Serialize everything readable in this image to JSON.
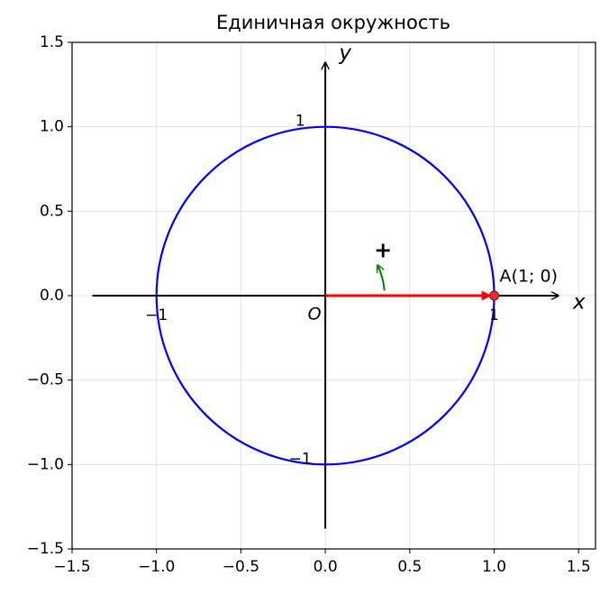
{
  "chart_data": {
    "type": "unit-circle",
    "title": "Единичная окружность",
    "xlim": [
      -1.5,
      1.6
    ],
    "ylim": [
      -1.5,
      1.5
    ],
    "xticks": [
      {
        "value": -1.5,
        "label": "−1.5"
      },
      {
        "value": -1.0,
        "label": "−1.0"
      },
      {
        "value": -0.5,
        "label": "−0.5"
      },
      {
        "value": 0.0,
        "label": "0.0"
      },
      0.5,
      {
        "value": 1.0,
        "label": "1.0"
      },
      1.5
    ],
    "yticks": [
      {
        "value": -1.5,
        "label": "−1.5"
      },
      {
        "value": -1.0,
        "label": "−1.0"
      },
      {
        "value": -0.5,
        "label": "−0.5"
      },
      {
        "value": 0.0,
        "label": "0.0"
      },
      0.5,
      {
        "value": 1.0,
        "label": "1.0"
      },
      1.5
    ],
    "grid": true,
    "circle": {
      "center": [
        0,
        0
      ],
      "radius": 1,
      "color": "#0000ff"
    },
    "x_axis": {
      "label": "x",
      "range": [
        -1.38,
        1.38
      ]
    },
    "y_axis": {
      "label": "y",
      "range": [
        -1.38,
        1.38
      ]
    },
    "origin_label": "O",
    "x_marks": [
      {
        "value": -1,
        "label": "−1"
      },
      {
        "value": 1,
        "label": "1"
      }
    ],
    "y_marks": [
      {
        "value": 1,
        "label": "1"
      },
      {
        "value": -1,
        "label": "−1"
      }
    ],
    "point": {
      "label": "A(1; 0)",
      "x": 1,
      "y": 0,
      "color": "#e03030"
    },
    "vector": {
      "x": [
        0,
        1
      ],
      "y": [
        0,
        0
      ],
      "color": "#ff0000"
    },
    "rotation": {
      "label": "+",
      "x": [
        0.35,
        0.31
      ],
      "y": [
        0.03,
        0.18
      ],
      "color": "#008000"
    }
  }
}
